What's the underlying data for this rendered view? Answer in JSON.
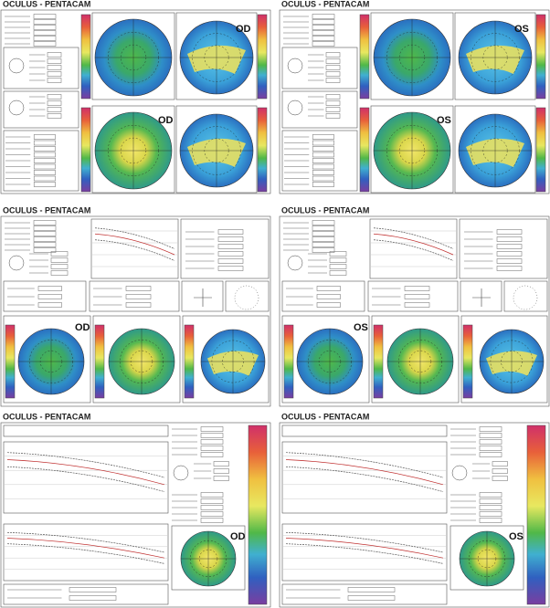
{
  "panels": [
    {
      "title": "OCULUS - PENTACAM",
      "eyes": [
        "OD",
        "OD"
      ]
    },
    {
      "title": "OCULUS - PENTACAM",
      "eyes": [
        "OS",
        "OS"
      ]
    },
    {
      "title": "OCULUS - PENTACAM",
      "eyes": [
        "OD"
      ]
    },
    {
      "title": "OCULUS - PENTACAM",
      "eyes": [
        "OS"
      ]
    },
    {
      "title": "OCULUS - PENTACAM",
      "eyes": [
        "OD"
      ]
    },
    {
      "title": "OCULUS - PENTACAM",
      "eyes": [
        "OS"
      ]
    }
  ]
}
